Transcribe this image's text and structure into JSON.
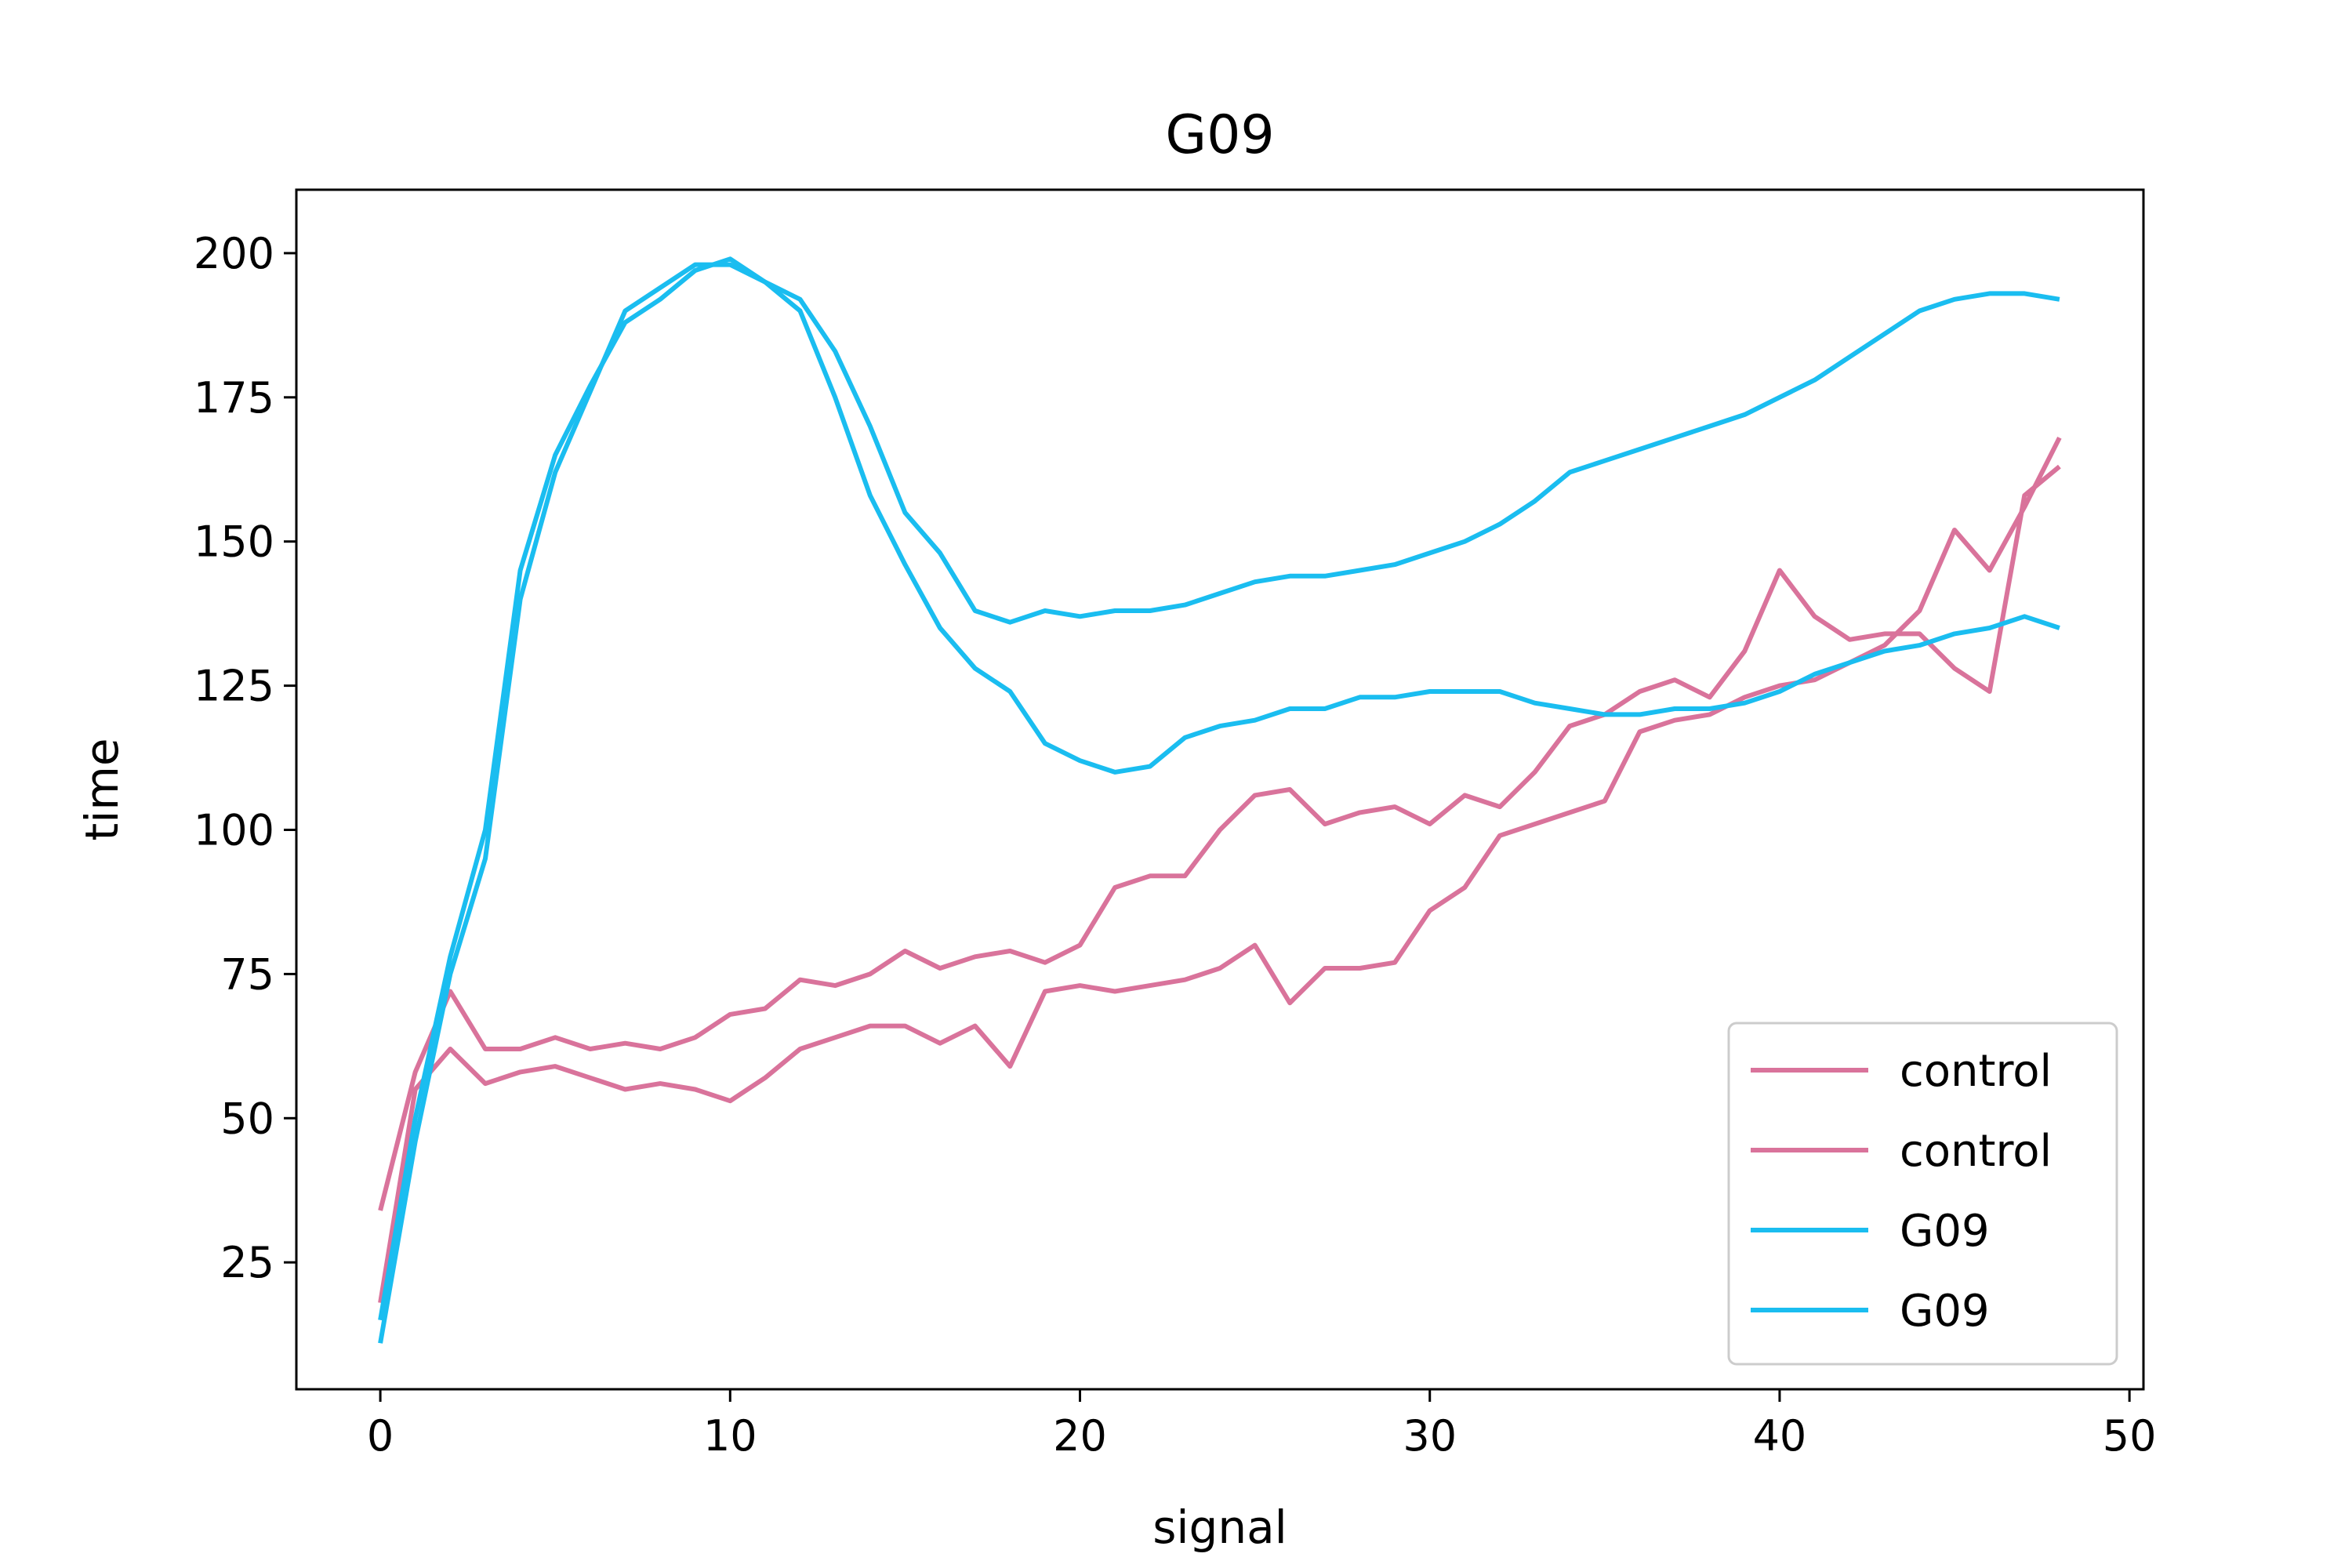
{
  "chart_data": {
    "type": "line",
    "title": "G09",
    "xlabel": "signal",
    "ylabel": "time",
    "xlim": [
      -2.4,
      50.4
    ],
    "ylim": [
      3,
      211
    ],
    "xticks": [
      0,
      10,
      20,
      30,
      40,
      50
    ],
    "yticks": [
      25,
      50,
      75,
      100,
      125,
      150,
      175,
      200
    ],
    "grid": false,
    "legend_position": "lower-right",
    "series": [
      {
        "name": "control",
        "color": "#d9739b",
        "x": [
          0,
          1,
          2,
          3,
          4,
          5,
          6,
          7,
          8,
          9,
          10,
          11,
          12,
          13,
          14,
          15,
          16,
          17,
          18,
          19,
          20,
          21,
          22,
          23,
          24,
          25,
          26,
          27,
          28,
          29,
          30,
          31,
          32,
          33,
          34,
          35,
          36,
          37,
          38,
          39,
          40,
          41,
          42,
          43,
          44,
          45,
          46,
          47,
          48
        ],
        "y": [
          34,
          58,
          72,
          62,
          62,
          64,
          62,
          63,
          62,
          64,
          68,
          69,
          74,
          73,
          75,
          79,
          76,
          78,
          79,
          77,
          80,
          90,
          92,
          92,
          100,
          106,
          107,
          101,
          103,
          104,
          101,
          106,
          104,
          110,
          118,
          120,
          124,
          126,
          123,
          131,
          145,
          137,
          133,
          134,
          134,
          128,
          124,
          158,
          163
        ]
      },
      {
        "name": "control",
        "color": "#d9739b",
        "x": [
          0,
          1,
          2,
          3,
          4,
          5,
          6,
          7,
          8,
          9,
          10,
          11,
          12,
          13,
          14,
          15,
          16,
          17,
          18,
          19,
          20,
          21,
          22,
          23,
          24,
          25,
          26,
          27,
          28,
          29,
          30,
          31,
          32,
          33,
          34,
          35,
          36,
          37,
          38,
          39,
          40,
          41,
          42,
          43,
          44,
          45,
          46,
          47,
          48
        ],
        "y": [
          18,
          55,
          62,
          56,
          58,
          59,
          57,
          55,
          56,
          55,
          53,
          57,
          62,
          64,
          66,
          66,
          63,
          66,
          59,
          72,
          73,
          72,
          73,
          74,
          76,
          80,
          70,
          76,
          76,
          77,
          86,
          90,
          99,
          101,
          103,
          105,
          117,
          119,
          120,
          123,
          125,
          126,
          129,
          132,
          138,
          152,
          145,
          156,
          168
        ]
      },
      {
        "name": "G09",
        "color": "#1abdf0",
        "x": [
          0,
          1,
          2,
          3,
          4,
          5,
          6,
          7,
          8,
          9,
          10,
          11,
          12,
          13,
          14,
          15,
          16,
          17,
          18,
          19,
          20,
          21,
          22,
          23,
          24,
          25,
          26,
          27,
          28,
          29,
          30,
          31,
          32,
          33,
          34,
          35,
          36,
          37,
          38,
          39,
          40,
          41,
          42,
          43,
          44,
          45,
          46,
          47,
          48
        ],
        "y": [
          15,
          50,
          78,
          100,
          145,
          165,
          177,
          188,
          192,
          197,
          199,
          195,
          190,
          175,
          158,
          146,
          135,
          128,
          124,
          115,
          112,
          110,
          111,
          116,
          118,
          119,
          121,
          121,
          123,
          123,
          124,
          124,
          124,
          122,
          121,
          120,
          120,
          121,
          121,
          122,
          124,
          127,
          129,
          131,
          132,
          134,
          135,
          137,
          135
        ]
      },
      {
        "name": "G09",
        "color": "#1abdf0",
        "x": [
          0,
          1,
          2,
          3,
          4,
          5,
          6,
          7,
          8,
          9,
          10,
          11,
          12,
          13,
          14,
          15,
          16,
          17,
          18,
          19,
          20,
          21,
          22,
          23,
          24,
          25,
          26,
          27,
          28,
          29,
          30,
          31,
          32,
          33,
          34,
          35,
          36,
          37,
          38,
          39,
          40,
          41,
          42,
          43,
          44,
          45,
          46,
          47,
          48
        ],
        "y": [
          11,
          46,
          75,
          95,
          140,
          162,
          176,
          190,
          194,
          198,
          198,
          195,
          192,
          183,
          170,
          155,
          148,
          138,
          136,
          138,
          137,
          138,
          138,
          139,
          141,
          143,
          144,
          144,
          145,
          146,
          148,
          150,
          153,
          157,
          162,
          164,
          166,
          168,
          170,
          172,
          175,
          178,
          182,
          186,
          190,
          192,
          193,
          193,
          192
        ]
      }
    ]
  }
}
